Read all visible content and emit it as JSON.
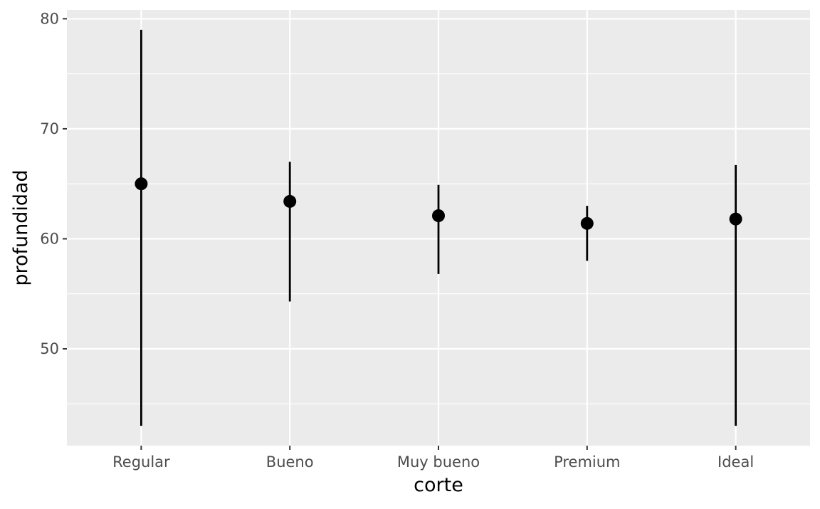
{
  "chart_data": {
    "type": "pointrange",
    "xlabel": "corte",
    "ylabel": "profundidad",
    "categories": [
      "Regular",
      "Bueno",
      "Muy bueno",
      "Premium",
      "Ideal"
    ],
    "series": [
      {
        "points": [
          {
            "x": "Regular",
            "y": 65.0,
            "ymin": 43.0,
            "ymax": 79.0
          },
          {
            "x": "Bueno",
            "y": 63.4,
            "ymin": 54.3,
            "ymax": 67.0
          },
          {
            "x": "Muy bueno",
            "y": 62.1,
            "ymin": 56.8,
            "ymax": 64.9
          },
          {
            "x": "Premium",
            "y": 61.4,
            "ymin": 58.0,
            "ymax": 63.0
          },
          {
            "x": "Ideal",
            "y": 61.8,
            "ymin": 43.0,
            "ymax": 66.7
          }
        ]
      }
    ],
    "ylim": [
      41.2,
      80.8
    ],
    "yticks": [
      50,
      60,
      70,
      80
    ],
    "yticks_labels": [
      "50",
      "60",
      "70",
      "80"
    ],
    "grid": true,
    "colors": {
      "panel_background": "#ebebeb",
      "grid_line": "#ffffff",
      "point": "#000000",
      "range_line": "#000000",
      "tick_mark": "#333333"
    }
  }
}
